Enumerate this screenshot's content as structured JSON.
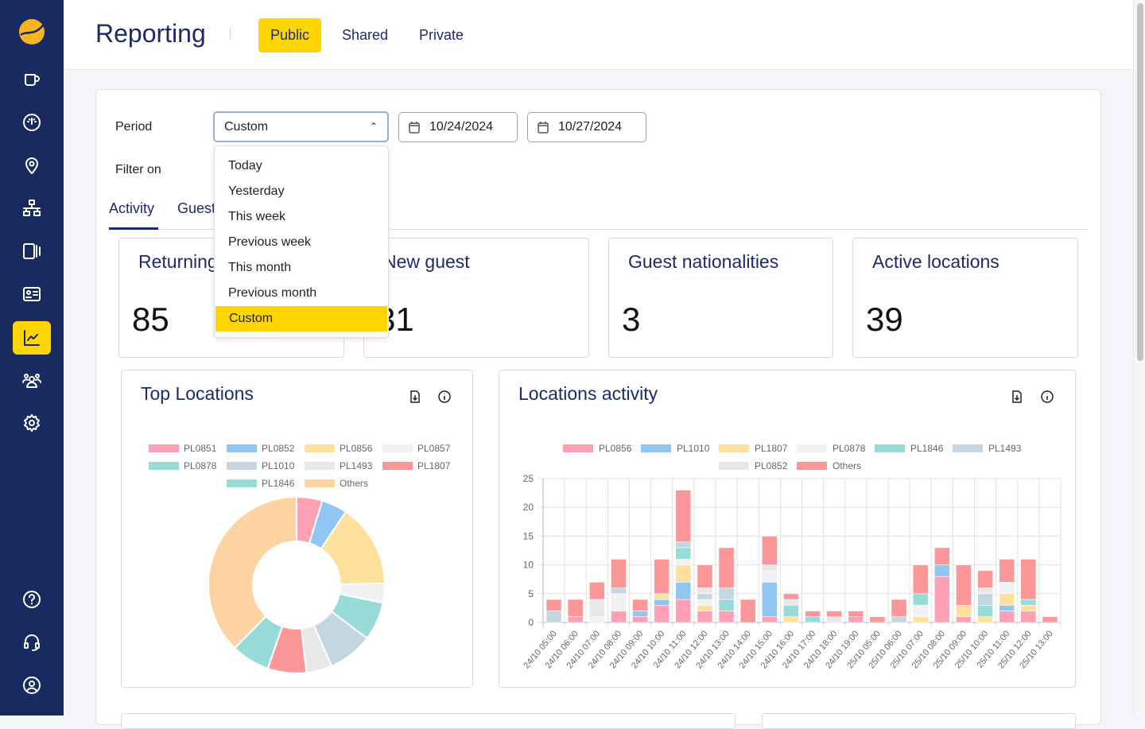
{
  "header": {
    "title": "Reporting",
    "tabs": [
      "Public",
      "Shared",
      "Private"
    ],
    "active_tab": "Public"
  },
  "sidebar": {
    "items": [
      "orders",
      "dashboard",
      "locations",
      "network",
      "devices",
      "guest-cards",
      "reporting",
      "users",
      "settings"
    ],
    "bottom": [
      "help",
      "support",
      "account"
    ],
    "active": "reporting",
    "accent": "#ffd500",
    "bg": "#182a5f"
  },
  "filters": {
    "period_label": "Period",
    "filter_label": "Filter on",
    "period_value": "Custom",
    "start_date": "10/24/2024",
    "end_date": "10/27/2024",
    "options": [
      "Today",
      "Yesterday",
      "This week",
      "Previous week",
      "This month",
      "Previous month",
      "Custom"
    ]
  },
  "subtabs": [
    "Activity",
    "Guest"
  ],
  "stats": [
    {
      "title": "Returning",
      "value": "85"
    },
    {
      "title": "New guest",
      "value": "31"
    },
    {
      "title": "Guest nationalities",
      "value": "3"
    },
    {
      "title": "Active locations",
      "value": "39"
    }
  ],
  "chart_data": [
    {
      "type": "pie",
      "title": "Top Locations",
      "donut": true,
      "legend_position": "top",
      "labels": [
        "PL0851",
        "PL0852",
        "PL0856",
        "PL0857",
        "PL0878",
        "PL1010",
        "PL1493",
        "PL1807",
        "PL1846",
        "Others"
      ],
      "values": [
        4,
        4,
        13,
        3,
        6,
        7,
        4,
        6,
        6,
        32
      ],
      "colors": [
        "#ffa0b5",
        "#8fc7f2",
        "#ffe09d",
        "#eff1f3",
        "#99dbd9",
        "#c4d7df",
        "#e8e8e8",
        "#fb9798",
        "#99dbd9",
        "#fed3a2"
      ]
    },
    {
      "type": "bar",
      "stacked": true,
      "title": "Locations activity",
      "legend_position": "top",
      "ylim": [
        0,
        25
      ],
      "yticks": [
        0,
        5,
        10,
        15,
        20,
        25
      ],
      "grid": true,
      "categories": [
        "24/10 05:00",
        "24/10 06:00",
        "24/10 07:00",
        "24/10 08:00",
        "24/10 09:00",
        "24/10 10:00",
        "24/10 11:00",
        "24/10 12:00",
        "24/10 13:00",
        "24/10 14:00",
        "24/10 15:00",
        "24/10 16:00",
        "24/10 17:00",
        "24/10 18:00",
        "24/10 19:00",
        "25/10 05:00",
        "25/10 06:00",
        "25/10 07:00",
        "25/10 08:00",
        "25/10 09:00",
        "25/10 10:00",
        "25/10 11:00",
        "25/10 12:00",
        "25/10 13:00"
      ],
      "series": [
        {
          "name": "PL0856",
          "color": "#ffa0b5",
          "values": [
            0,
            1,
            0,
            2,
            1,
            3,
            4,
            2,
            2,
            0,
            1,
            0,
            0,
            0,
            1,
            0,
            0,
            0,
            8,
            1,
            0,
            2,
            2,
            0
          ]
        },
        {
          "name": "PL1010",
          "color": "#8fc7f2",
          "values": [
            0,
            0,
            0,
            0,
            1,
            1,
            3,
            0,
            0,
            0,
            6,
            0,
            0,
            0,
            0,
            0,
            0,
            0,
            2,
            0,
            0,
            1,
            0,
            0
          ]
        },
        {
          "name": "PL1807",
          "color": "#ffe09d",
          "values": [
            0,
            0,
            0,
            0,
            0,
            1,
            3,
            1,
            0,
            0,
            0,
            1,
            0,
            0,
            0,
            0,
            0,
            1,
            0,
            2,
            1,
            2,
            1,
            0
          ]
        },
        {
          "name": "PL0878",
          "color": "#eff1f3",
          "values": [
            0,
            0,
            1,
            3,
            0,
            0,
            1,
            1,
            0,
            0,
            2,
            0,
            0,
            0,
            0,
            0,
            0,
            2,
            0,
            0,
            0,
            2,
            0,
            0
          ]
        },
        {
          "name": "PL1846",
          "color": "#99dbd9",
          "values": [
            0,
            0,
            0,
            0,
            0,
            0,
            2,
            0,
            2,
            0,
            0,
            2,
            1,
            0,
            0,
            0,
            0,
            2,
            0,
            0,
            2,
            0,
            1,
            0
          ]
        },
        {
          "name": "PL1493",
          "color": "#c4d7df",
          "values": [
            2,
            0,
            0,
            1,
            0,
            0,
            1,
            1,
            2,
            0,
            0,
            0,
            0,
            0,
            0,
            0,
            1,
            0,
            0,
            0,
            2,
            0,
            0,
            0
          ]
        },
        {
          "name": "PL0852",
          "color": "#e8e8e8",
          "values": [
            0,
            0,
            3,
            0,
            0,
            0,
            0,
            1,
            0,
            0,
            1,
            1,
            0,
            1,
            0,
            0,
            0,
            0,
            0,
            0,
            1,
            0,
            0,
            0
          ]
        },
        {
          "name": "Others",
          "color": "#fb9798",
          "values": [
            2,
            3,
            3,
            5,
            2,
            6,
            9,
            4,
            7,
            4,
            5,
            1,
            1,
            1,
            1,
            1,
            3,
            5,
            3,
            7,
            3,
            4,
            7,
            1
          ]
        }
      ]
    }
  ]
}
